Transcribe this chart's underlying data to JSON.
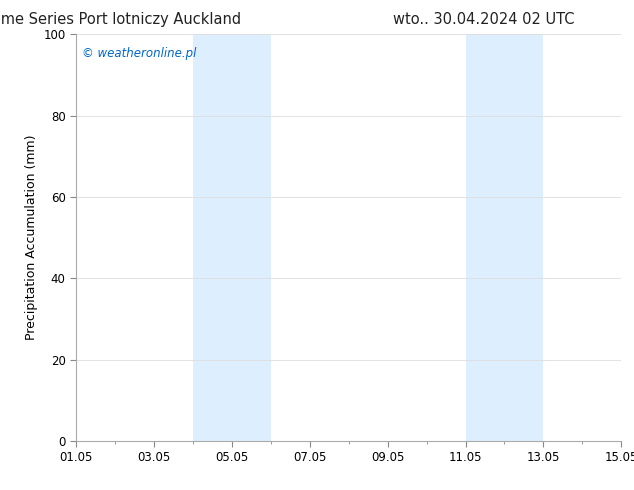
{
  "title_left": "ECMW-ENS Time Series Port lotniczy Auckland",
  "title_right": "wto.. 30.04.2024 02 UTC",
  "ylabel": "Precipitation Accumulation (mm)",
  "watermark": "© weatheronline.pl",
  "watermark_color": "#0066cc",
  "ylim": [
    0,
    100
  ],
  "yticks": [
    0,
    20,
    40,
    60,
    80,
    100
  ],
  "xtick_labels": [
    "01.05",
    "03.05",
    "05.05",
    "07.05",
    "09.05",
    "11.05",
    "13.05",
    "15.05"
  ],
  "xtick_positions": [
    0,
    2,
    4,
    6,
    8,
    10,
    12,
    14
  ],
  "x_start": 0,
  "x_end": 14,
  "background_color": "#ffffff",
  "plot_bg_color": "#ffffff",
  "shaded_bands": [
    {
      "x_start": 3,
      "x_end": 5,
      "color": "#ddeeff"
    },
    {
      "x_start": 10,
      "x_end": 12,
      "color": "#ddeeff"
    }
  ],
  "title_fontsize": 10.5,
  "axis_label_fontsize": 9,
  "tick_fontsize": 8.5,
  "watermark_fontsize": 8.5,
  "grid_color": "#dddddd",
  "grid_linewidth": 0.6
}
